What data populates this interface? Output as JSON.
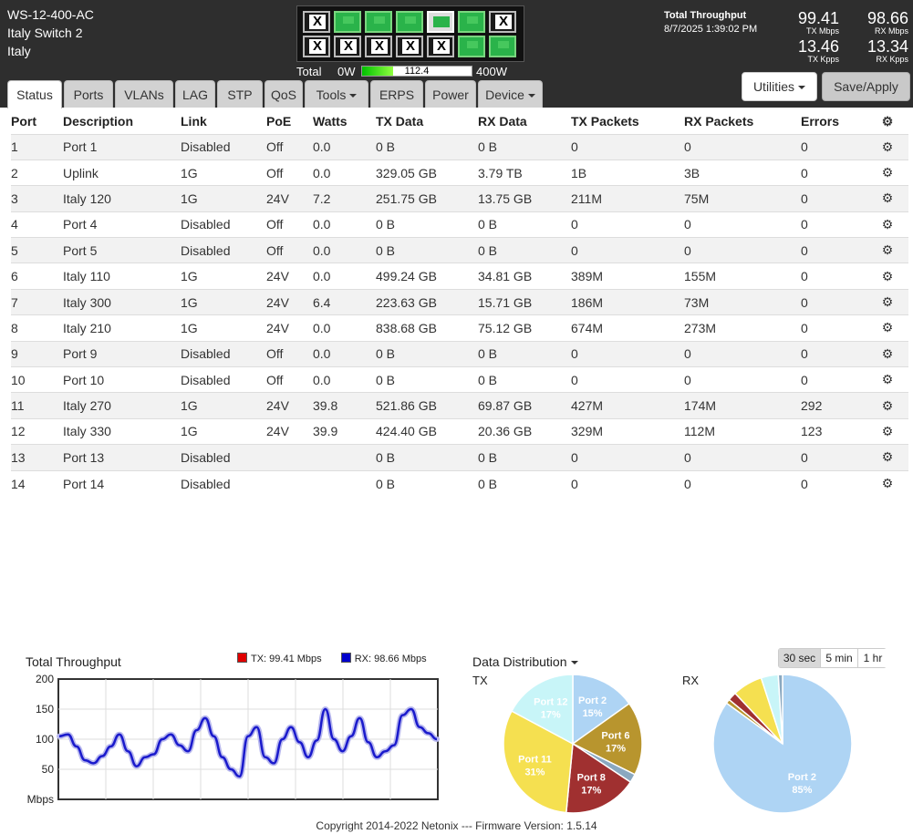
{
  "device": {
    "name": "WS-12-400-AC",
    "location1": "Italy Switch 2",
    "location2": "Italy"
  },
  "ports_panel": [
    {
      "port": 1,
      "state": "x"
    },
    {
      "port": 2,
      "state": "x"
    },
    {
      "port": 3,
      "state": "up"
    },
    {
      "port": 4,
      "state": "x"
    },
    {
      "port": 5,
      "state": "up"
    },
    {
      "port": 6,
      "state": "x"
    },
    {
      "port": 7,
      "state": "up"
    },
    {
      "port": 8,
      "state": "x"
    },
    {
      "port": 9,
      "state": "pwr"
    },
    {
      "port": 10,
      "state": "x"
    },
    {
      "port": 11,
      "state": "up"
    },
    {
      "port": 12,
      "state": "up"
    },
    {
      "port": 13,
      "state": "x"
    },
    {
      "port": 14,
      "state": "up"
    }
  ],
  "power": {
    "label": "Total",
    "min": "0W",
    "max": "400W",
    "value": "112.4",
    "fraction": 0.281
  },
  "throughput": {
    "title": "Total Throughput",
    "timestamp": "8/7/2025 1:39:02 PM",
    "tx_mbps": "99.41",
    "tx_mbps_label": "TX Mbps",
    "rx_mbps": "98.66",
    "rx_mbps_label": "RX Mbps",
    "tx_kpps": "13.46",
    "tx_kpps_label": "TX Kpps",
    "rx_kpps": "13.34",
    "rx_kpps_label": "RX Kpps"
  },
  "buttons": {
    "utilities": "Utilities",
    "save": "Save/Apply"
  },
  "tabs": [
    {
      "label": "Status",
      "active": true,
      "dropdown": false
    },
    {
      "label": "Ports",
      "active": false,
      "dropdown": false
    },
    {
      "label": "VLANs",
      "active": false,
      "dropdown": false
    },
    {
      "label": "LAG",
      "active": false,
      "dropdown": false
    },
    {
      "label": "STP",
      "active": false,
      "dropdown": false
    },
    {
      "label": "QoS",
      "active": false,
      "dropdown": false
    },
    {
      "label": "Tools",
      "active": false,
      "dropdown": true
    },
    {
      "label": "ERPS",
      "active": false,
      "dropdown": false
    },
    {
      "label": "Power",
      "active": false,
      "dropdown": false
    },
    {
      "label": "Device",
      "active": false,
      "dropdown": true
    }
  ],
  "table": {
    "headers": [
      "Port",
      "Description",
      "Link",
      "PoE",
      "Watts",
      "TX Data",
      "RX Data",
      "TX Packets",
      "RX Packets",
      "Errors"
    ],
    "rows": [
      [
        "1",
        "Port 1",
        "Disabled",
        "Off",
        "0.0",
        "0 B",
        "0 B",
        "0",
        "0",
        "0"
      ],
      [
        "2",
        "Uplink",
        "1G",
        "Off",
        "0.0",
        "329.05 GB",
        "3.79 TB",
        "1B",
        "3B",
        "0"
      ],
      [
        "3",
        "Italy 120",
        "1G",
        "24V",
        "7.2",
        "251.75 GB",
        "13.75 GB",
        "211M",
        "75M",
        "0"
      ],
      [
        "4",
        "Port 4",
        "Disabled",
        "Off",
        "0.0",
        "0 B",
        "0 B",
        "0",
        "0",
        "0"
      ],
      [
        "5",
        "Port 5",
        "Disabled",
        "Off",
        "0.0",
        "0 B",
        "0 B",
        "0",
        "0",
        "0"
      ],
      [
        "6",
        "Italy 110",
        "1G",
        "24V",
        "0.0",
        "499.24 GB",
        "34.81 GB",
        "389M",
        "155M",
        "0"
      ],
      [
        "7",
        "Italy 300",
        "1G",
        "24V",
        "6.4",
        "223.63 GB",
        "15.71 GB",
        "186M",
        "73M",
        "0"
      ],
      [
        "8",
        "Italy 210",
        "1G",
        "24V",
        "0.0",
        "838.68 GB",
        "75.12 GB",
        "674M",
        "273M",
        "0"
      ],
      [
        "9",
        "Port 9",
        "Disabled",
        "Off",
        "0.0",
        "0 B",
        "0 B",
        "0",
        "0",
        "0"
      ],
      [
        "10",
        "Port 10",
        "Disabled",
        "Off",
        "0.0",
        "0 B",
        "0 B",
        "0",
        "0",
        "0"
      ],
      [
        "11",
        "Italy 270",
        "1G",
        "24V",
        "39.8",
        "521.86 GB",
        "69.87 GB",
        "427M",
        "174M",
        "292"
      ],
      [
        "12",
        "Italy 330",
        "1G",
        "24V",
        "39.9",
        "424.40 GB",
        "20.36 GB",
        "329M",
        "112M",
        "123"
      ],
      [
        "13",
        "Port 13",
        "Disabled",
        "",
        "",
        "0 B",
        "0 B",
        "0",
        "0",
        "0"
      ],
      [
        "14",
        "Port 14",
        "Disabled",
        "",
        "",
        "0 B",
        "0 B",
        "0",
        "0",
        "0"
      ]
    ]
  },
  "chart_data": [
    {
      "type": "line",
      "title": "Total Throughput",
      "ylabel": "Mbps",
      "ylim": [
        0,
        200
      ],
      "yticks": [
        "200",
        "150",
        "100",
        "50"
      ],
      "legend": [
        {
          "label": "TX: 99.41 Mbps",
          "color": "#e00000"
        },
        {
          "label": "RX: 98.66 Mbps",
          "color": "#0000cc"
        }
      ],
      "series": [
        {
          "name": "RX",
          "color": "#1a1acc",
          "values": [
            105,
            108,
            88,
            65,
            60,
            72,
            88,
            108,
            80,
            55,
            70,
            75,
            100,
            108,
            90,
            80,
            115,
            135,
            105,
            70,
            50,
            38,
            105,
            120,
            70,
            60,
            100,
            120,
            95,
            70,
            98,
            150,
            100,
            80,
            105,
            135,
            95,
            70,
            80,
            90,
            140,
            150,
            120,
            110,
            100
          ]
        }
      ]
    },
    {
      "type": "pie",
      "title": "Data Distribution",
      "subtitle": "TX",
      "slices": [
        {
          "label": "Port 2",
          "pct_label": "15%",
          "value": 15,
          "color": "#aed4f4"
        },
        {
          "label": "Port 6",
          "pct_label": "17%",
          "value": 17,
          "color": "#b8952e"
        },
        {
          "label": "",
          "pct_label": "",
          "value": 2,
          "color": "#8aa8c0"
        },
        {
          "label": "Port 8",
          "pct_label": "17%",
          "value": 17,
          "color": "#a03030"
        },
        {
          "label": "Port 11",
          "pct_label": "31%",
          "value": 31,
          "color": "#f5e050"
        },
        {
          "label": "Port 12",
          "pct_label": "17%",
          "value": 17,
          "color": "#c8f5f8"
        }
      ]
    },
    {
      "type": "pie",
      "subtitle": "RX",
      "slices": [
        {
          "label": "Port 2",
          "pct_label": "85%",
          "value": 85,
          "color": "#aed4f4"
        },
        {
          "label": "",
          "pct_label": "",
          "value": 1,
          "color": "#b8952e"
        },
        {
          "label": "",
          "pct_label": "",
          "value": 2,
          "color": "#a03030"
        },
        {
          "label": "",
          "pct_label": "",
          "value": 7,
          "color": "#f5e050"
        },
        {
          "label": "",
          "pct_label": "",
          "value": 4,
          "color": "#c8f5f8"
        },
        {
          "label": "",
          "pct_label": "",
          "value": 1,
          "color": "#8aa8c0"
        }
      ]
    }
  ],
  "distribution": {
    "title": "Data Distribution",
    "tx_label": "TX",
    "rx_label": "RX",
    "ranges": [
      "30 sec",
      "5 min",
      "1 hr"
    ],
    "selected_range": "30 sec"
  },
  "footer": "Copyright 2014-2022 Netonix --- Firmware Version: 1.5.14"
}
